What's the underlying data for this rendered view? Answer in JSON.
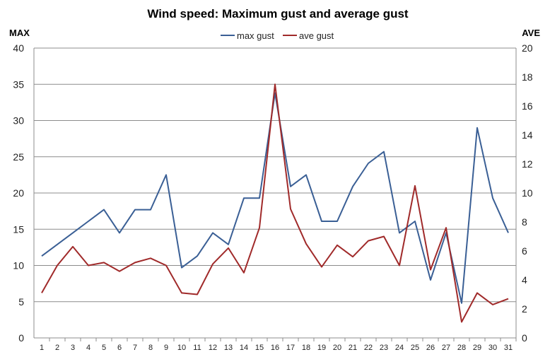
{
  "chart_data": {
    "type": "line",
    "title": "Wind speed: Maximum gust and average gust",
    "y_left_label": "MAX",
    "y_right_label": "AVE",
    "y_left_range": [
      0,
      40
    ],
    "y_left_ticks": [
      0,
      5,
      10,
      15,
      20,
      25,
      30,
      35,
      40
    ],
    "y_right_range": [
      0,
      20
    ],
    "y_right_ticks": [
      0,
      2,
      4,
      6,
      8,
      10,
      12,
      14,
      16,
      18,
      20
    ],
    "grid": true,
    "legend_position": "top-center",
    "x": [
      1,
      2,
      3,
      4,
      5,
      6,
      7,
      8,
      9,
      10,
      11,
      12,
      13,
      14,
      15,
      16,
      17,
      18,
      19,
      20,
      21,
      22,
      23,
      24,
      25,
      26,
      27,
      28,
      29,
      30,
      31
    ],
    "series": [
      {
        "name": "max gust",
        "axis": "left",
        "color": "#3a5f95",
        "values": [
          11.3,
          12.9,
          14.5,
          16.1,
          17.7,
          14.5,
          17.7,
          17.7,
          22.5,
          9.7,
          11.3,
          14.5,
          12.9,
          19.3,
          19.3,
          33.8,
          20.9,
          22.5,
          16.1,
          16.1,
          20.9,
          24.1,
          25.7,
          14.5,
          16.1,
          8.0,
          14.5,
          4.8,
          29.0,
          19.3,
          14.5
        ]
      },
      {
        "name": "ave gust",
        "axis": "right",
        "color": "#a02a2a",
        "values": [
          3.1,
          5.0,
          6.3,
          5.0,
          5.2,
          4.6,
          5.2,
          5.5,
          5.0,
          3.1,
          3.0,
          5.1,
          6.2,
          4.5,
          7.6,
          17.5,
          8.9,
          6.5,
          4.9,
          6.4,
          5.6,
          6.7,
          7.0,
          5.0,
          10.5,
          4.7,
          7.6,
          1.1,
          3.1,
          2.3,
          2.7
        ]
      }
    ]
  }
}
